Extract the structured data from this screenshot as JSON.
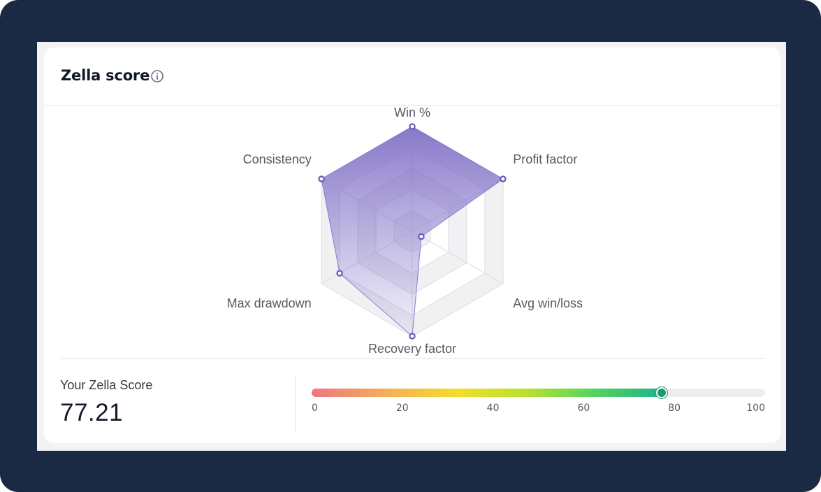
{
  "card": {
    "title": "Zella score",
    "info_icon": "info-circle-icon"
  },
  "score": {
    "label": "Your Zella Score",
    "value_text": "77.21",
    "value": 77.21,
    "scale_min": 0,
    "scale_max": 100,
    "ticks": [
      "0",
      "20",
      "40",
      "60",
      "80",
      "100"
    ]
  },
  "chart_data": {
    "type": "radar",
    "axes": [
      "Win %",
      "Profit factor",
      "Avg win/loss",
      "Recovery factor",
      "Max drawdown",
      "Consistency"
    ],
    "values": [
      100,
      100,
      10,
      100,
      80,
      100
    ],
    "range": [
      0,
      100
    ],
    "grid_levels": 5,
    "series_color": "#7a68c4",
    "marker_color": "#6a56b8"
  }
}
